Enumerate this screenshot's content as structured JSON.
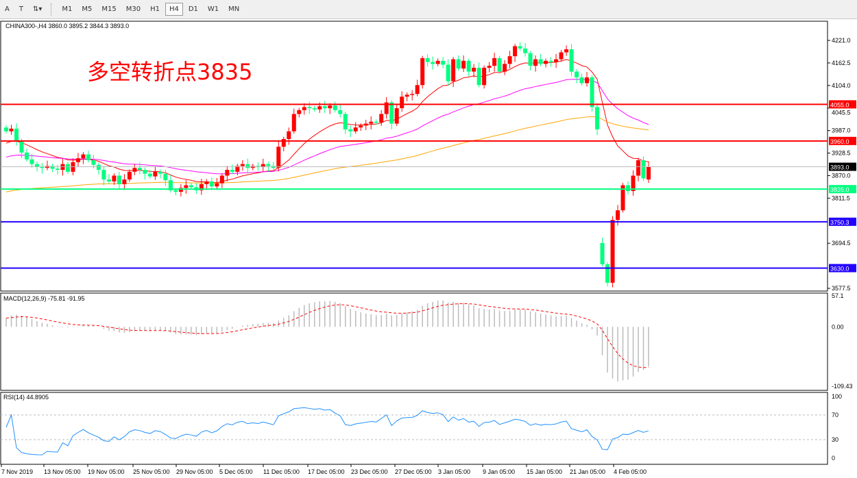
{
  "toolbar": {
    "tools": [
      "A",
      "T",
      "⇅▾"
    ],
    "timeframes": [
      "M1",
      "M5",
      "M15",
      "M30",
      "H1",
      "H4",
      "D1",
      "W1",
      "MN"
    ],
    "active": "H4"
  },
  "chart": {
    "symbol_line": "CHINA300-,H4  3860.0 3895.2 3844.3 3893.0",
    "annotation": "多空转折点3835",
    "colors": {
      "up": "#ff0000",
      "down": "#00ff7f",
      "ma_fast": "#ff0000",
      "ma_mid": "#ff00ff",
      "ma_slow": "#ffa500"
    },
    "price_ticks": [
      "4221.0",
      "4162.5",
      "4104.0",
      "4045.5",
      "3987.0",
      "3928.5",
      "3870.0",
      "3811.5",
      "3694.5",
      "3577.5"
    ],
    "levels": [
      {
        "price": 4055.0,
        "label": "4055.0",
        "color": "#ff0000"
      },
      {
        "price": 3960.0,
        "label": "3960.0",
        "color": "#ff0000"
      },
      {
        "price": 3893.0,
        "label": "3893.0",
        "color": "#000000"
      },
      {
        "price": 3835.0,
        "label": "3835.0",
        "color": "#00ff7f"
      },
      {
        "price": 3750.3,
        "label": "3750.3",
        "color": "#2200ff"
      },
      {
        "price": 3630.0,
        "label": "3630.0",
        "color": "#2200ff"
      }
    ],
    "closes": [
      3985,
      3992,
      3960,
      3930,
      3912,
      3900,
      3893,
      3890,
      3895,
      3888,
      3885,
      3900,
      3880,
      3905,
      3915,
      3925,
      3910,
      3898,
      3885,
      3860,
      3855,
      3870,
      3848,
      3860,
      3880,
      3890,
      3885,
      3875,
      3868,
      3880,
      3875,
      3858,
      3832,
      3828,
      3838,
      3845,
      3840,
      3832,
      3848,
      3855,
      3842,
      3850,
      3870,
      3885,
      3880,
      3895,
      3900,
      3890,
      3895,
      3892,
      3900,
      3895,
      3890,
      3945,
      3965,
      3985,
      4030,
      4040,
      4048,
      4045,
      4042,
      4050,
      4045,
      4052,
      4040,
      4030,
      3990,
      3985,
      3995,
      4000,
      4005,
      4010,
      4008,
      4030,
      4060,
      4005,
      4045,
      4075,
      4080,
      4082,
      4105,
      4175,
      4165,
      4160,
      4168,
      4158,
      4115,
      4172,
      4148,
      4168,
      4140,
      4150,
      4105,
      4150,
      4155,
      4175,
      4140,
      4160,
      4180,
      4206,
      4200,
      4188,
      4155,
      4172,
      4160,
      4168,
      4165,
      4172,
      4190,
      4198,
      4140,
      4125,
      4110,
      4125,
      4048,
      3990,
      3640,
      3592,
      3755,
      3780,
      3845,
      3830,
      3870,
      3910,
      3863,
      3893
    ],
    "gap_opens": {
      "116": 3695,
      "125": 3860
    },
    "x_labels": [
      "7 Nov 2019",
      "13 Nov 05:00",
      "19 Nov 05:00",
      "25 Nov 05:00",
      "29 Nov 05:00",
      "5 Dec 05:00",
      "11 Dec 05:00",
      "17 Dec 05:00",
      "23 Dec 05:00",
      "27 Dec 05:00",
      "3 Jan 05:00",
      "9 Jan 05:00",
      "15 Jan 05:00",
      "21 Jan 05:00",
      "4 Feb 05:00"
    ]
  },
  "macd": {
    "label": "MACD(12,26,9) -75.81 -91.95",
    "ticks": [
      "57.1",
      "0.00",
      "-109.43"
    ],
    "range": [
      -109.43,
      57.1
    ]
  },
  "rsi": {
    "label": "RSI(14) 44.8905",
    "ticks": [
      "100",
      "70",
      "30",
      "0"
    ],
    "levels": [
      70,
      30
    ]
  }
}
